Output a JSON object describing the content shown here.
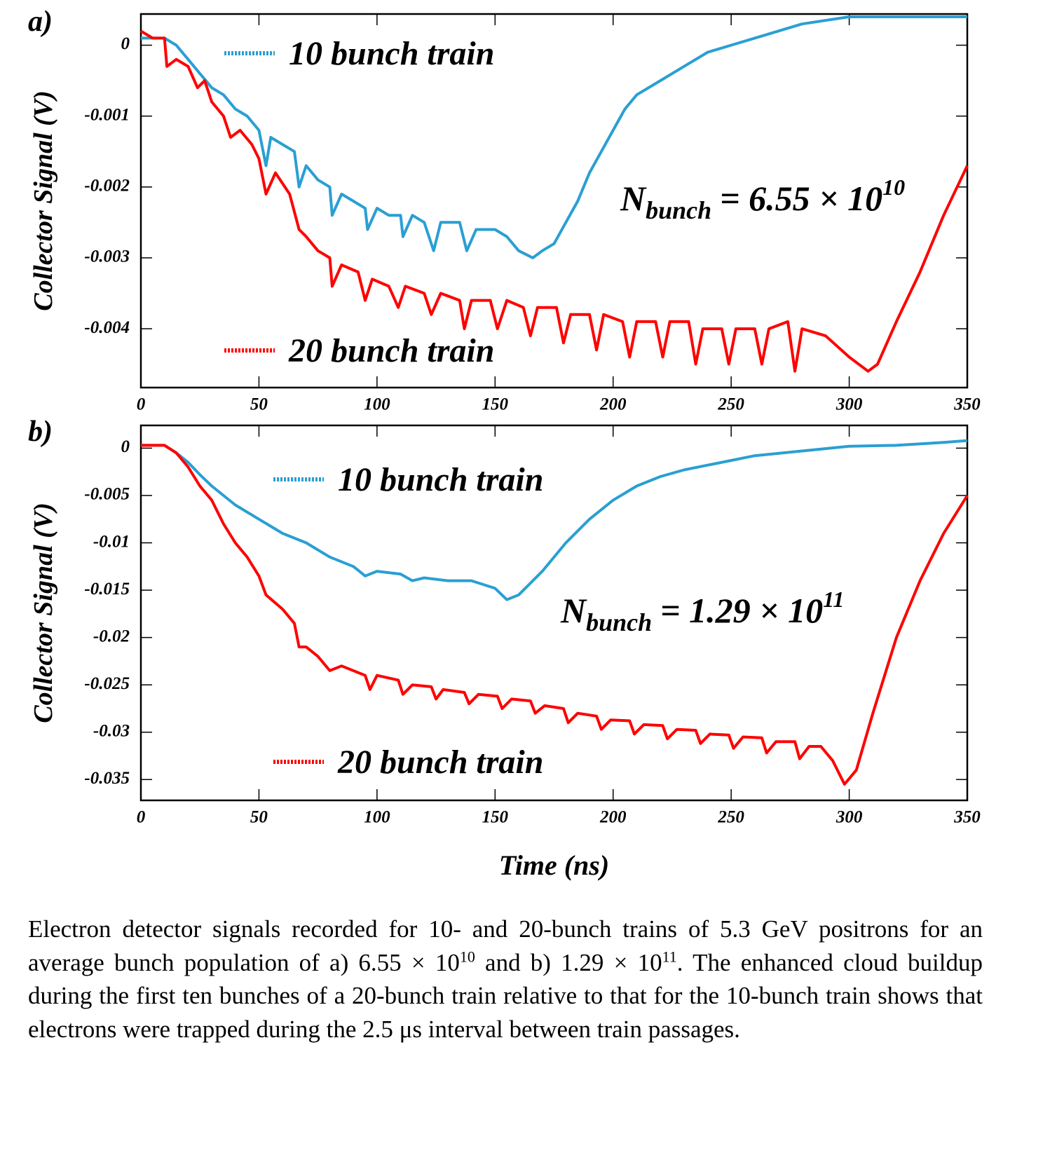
{
  "chart_data": [
    {
      "type": "line",
      "panel_label": "a)",
      "ylabel": "Collector Signal (V)",
      "xlim": [
        0,
        350
      ],
      "xticks": [
        0,
        50,
        100,
        150,
        200,
        250,
        300,
        350
      ],
      "ylim": [
        -0.00483,
        0.00044
      ],
      "yticks": [
        0,
        -0.001,
        -0.002,
        -0.003,
        -0.004
      ],
      "annotation": {
        "symbol": "N",
        "subscript": "bunch",
        "text": "= 6.55 × 10",
        "superscript": "10"
      },
      "series": [
        {
          "name": "10 bunch train",
          "color": "#2a9fd3",
          "x": [
            0,
            5,
            10,
            15,
            20,
            25,
            30,
            35,
            40,
            45,
            50,
            53,
            55,
            60,
            65,
            67,
            70,
            75,
            80,
            81,
            85,
            90,
            95,
            96,
            100,
            105,
            110,
            111,
            115,
            120,
            124,
            127,
            135,
            138,
            142,
            150,
            155,
            160,
            166,
            170,
            175,
            180,
            185,
            190,
            195,
            200,
            205,
            210,
            220,
            230,
            240,
            250,
            260,
            270,
            280,
            300,
            320,
            340,
            350
          ],
          "values": [
            0.0001,
            0.0001,
            0.0001,
            0,
            -0.0002,
            -0.0004,
            -0.0006,
            -0.0007,
            -0.0009,
            -0.001,
            -0.0012,
            -0.0017,
            -0.0013,
            -0.0014,
            -0.0015,
            -0.002,
            -0.0017,
            -0.0019,
            -0.002,
            -0.0024,
            -0.0021,
            -0.0022,
            -0.0023,
            -0.0026,
            -0.0023,
            -0.0024,
            -0.0024,
            -0.0027,
            -0.0024,
            -0.0025,
            -0.0029,
            -0.0025,
            -0.0025,
            -0.0029,
            -0.0026,
            -0.0026,
            -0.0027,
            -0.0029,
            -0.003,
            -0.0029,
            -0.0028,
            -0.0025,
            -0.0022,
            -0.0018,
            -0.0015,
            -0.0012,
            -0.0009,
            -0.0007,
            -0.0005,
            -0.0003,
            -0.0001,
            0,
            0.0001,
            0.0002,
            0.0003,
            0.0004,
            0.0004,
            0.0004,
            0.0004
          ]
        },
        {
          "name": "20 bunch train",
          "color": "#ff0000",
          "x": [
            0,
            5,
            10,
            11,
            15,
            20,
            24,
            27,
            30,
            35,
            38,
            42,
            47,
            50,
            53,
            57,
            63,
            67,
            70,
            75,
            80,
            81,
            85,
            92,
            95,
            98,
            105,
            109,
            112,
            120,
            123,
            127,
            135,
            137,
            140,
            148,
            151,
            155,
            162,
            165,
            168,
            176,
            179,
            182,
            190,
            193,
            196,
            204,
            207,
            210,
            218,
            221,
            224,
            232,
            235,
            238,
            246,
            249,
            252,
            260,
            263,
            266,
            274,
            277,
            280,
            290,
            300,
            308,
            312,
            320,
            330,
            340,
            350
          ],
          "values": [
            0.0002,
            0.0001,
            0.0001,
            -0.0003,
            -0.0002,
            -0.0003,
            -0.0006,
            -0.0005,
            -0.0008,
            -0.001,
            -0.0013,
            -0.0012,
            -0.0014,
            -0.0016,
            -0.0021,
            -0.0018,
            -0.0021,
            -0.0026,
            -0.0027,
            -0.0029,
            -0.003,
            -0.0034,
            -0.0031,
            -0.0032,
            -0.0036,
            -0.0033,
            -0.0034,
            -0.0037,
            -0.0034,
            -0.0035,
            -0.0038,
            -0.0035,
            -0.0036,
            -0.004,
            -0.0036,
            -0.0036,
            -0.004,
            -0.0036,
            -0.0037,
            -0.0041,
            -0.0037,
            -0.0037,
            -0.0042,
            -0.0038,
            -0.0038,
            -0.0043,
            -0.0038,
            -0.0039,
            -0.0044,
            -0.0039,
            -0.0039,
            -0.0044,
            -0.0039,
            -0.0039,
            -0.0045,
            -0.004,
            -0.004,
            -0.0045,
            -0.004,
            -0.004,
            -0.0045,
            -0.004,
            -0.0039,
            -0.0046,
            -0.004,
            -0.0041,
            -0.0044,
            -0.0046,
            -0.0045,
            -0.0039,
            -0.0032,
            -0.0024,
            -0.0017
          ]
        }
      ]
    },
    {
      "type": "line",
      "panel_label": "b)",
      "ylabel": "Collector Signal (V)",
      "xlabel": "Time (ns)",
      "xlim": [
        0,
        350
      ],
      "xticks": [
        0,
        50,
        100,
        150,
        200,
        250,
        300,
        350
      ],
      "ylim": [
        -0.0372,
        0.0024
      ],
      "yticks": [
        0,
        -0.005,
        -0.01,
        -0.015,
        -0.02,
        -0.025,
        -0.03,
        -0.035
      ],
      "annotation": {
        "symbol": "N",
        "subscript": "bunch",
        "text": "= 1.29 × 10",
        "superscript": "11"
      },
      "series": [
        {
          "name": "10 bunch train",
          "color": "#2a9fd3",
          "x": [
            0,
            10,
            15,
            20,
            25,
            30,
            35,
            40,
            50,
            60,
            70,
            80,
            90,
            95,
            100,
            110,
            115,
            120,
            130,
            140,
            150,
            155,
            160,
            170,
            180,
            190,
            200,
            210,
            220,
            230,
            240,
            250,
            260,
            280,
            300,
            320,
            340,
            350
          ],
          "values": [
            0.0003,
            0.0003,
            -0.0005,
            -0.0015,
            -0.0028,
            -0.004,
            -0.005,
            -0.006,
            -0.0075,
            -0.009,
            -0.01,
            -0.0115,
            -0.0125,
            -0.0135,
            -0.013,
            -0.0133,
            -0.014,
            -0.0137,
            -0.014,
            -0.014,
            -0.0148,
            -0.016,
            -0.0155,
            -0.013,
            -0.01,
            -0.0075,
            -0.0055,
            -0.004,
            -0.003,
            -0.0023,
            -0.0018,
            -0.0013,
            -0.0008,
            -0.0003,
            0.0002,
            0.0003,
            0.0006,
            0.0008
          ]
        },
        {
          "name": "20 bunch train",
          "color": "#ff0000",
          "x": [
            0,
            10,
            15,
            20,
            25,
            30,
            35,
            40,
            45,
            50,
            53,
            60,
            65,
            67,
            70,
            75,
            80,
            85,
            95,
            97,
            100,
            109,
            111,
            115,
            123,
            125,
            128,
            137,
            139,
            143,
            151,
            153,
            157,
            165,
            167,
            171,
            179,
            181,
            185,
            193,
            195,
            199,
            207,
            209,
            213,
            221,
            223,
            227,
            235,
            237,
            241,
            249,
            251,
            255,
            263,
            265,
            269,
            277,
            279,
            283,
            288,
            293,
            298,
            303,
            310,
            320,
            330,
            340,
            350
          ],
          "values": [
            0.0003,
            0.0003,
            -0.0005,
            -0.002,
            -0.004,
            -0.0055,
            -0.008,
            -0.01,
            -0.0115,
            -0.0135,
            -0.0155,
            -0.017,
            -0.0185,
            -0.021,
            -0.021,
            -0.022,
            -0.0235,
            -0.023,
            -0.024,
            -0.0255,
            -0.024,
            -0.0245,
            -0.026,
            -0.025,
            -0.0252,
            -0.0265,
            -0.0255,
            -0.0258,
            -0.027,
            -0.026,
            -0.0262,
            -0.0275,
            -0.0265,
            -0.0267,
            -0.028,
            -0.0272,
            -0.0275,
            -0.029,
            -0.028,
            -0.0283,
            -0.0297,
            -0.0287,
            -0.0288,
            -0.0302,
            -0.0292,
            -0.0293,
            -0.0307,
            -0.0297,
            -0.0298,
            -0.0312,
            -0.0302,
            -0.0303,
            -0.0317,
            -0.0305,
            -0.0306,
            -0.0322,
            -0.031,
            -0.031,
            -0.0328,
            -0.0315,
            -0.0315,
            -0.033,
            -0.0355,
            -0.034,
            -0.028,
            -0.02,
            -0.014,
            -0.009,
            -0.005
          ]
        }
      ]
    }
  ],
  "caption": [
    "Electron detector signals recorded for 10- and 20-bunch trains of 5.3 GeV positrons for an average bunch population of a) 6.55 × 10",
    "10",
    " and b) 1.29 × 10",
    "11",
    ". The enhanced cloud buildup during the first ten bunches of a 20-bunch train relative to that for the 10-bunch train shows that electrons were trapped during the 2.5 μs interval between train passages."
  ]
}
